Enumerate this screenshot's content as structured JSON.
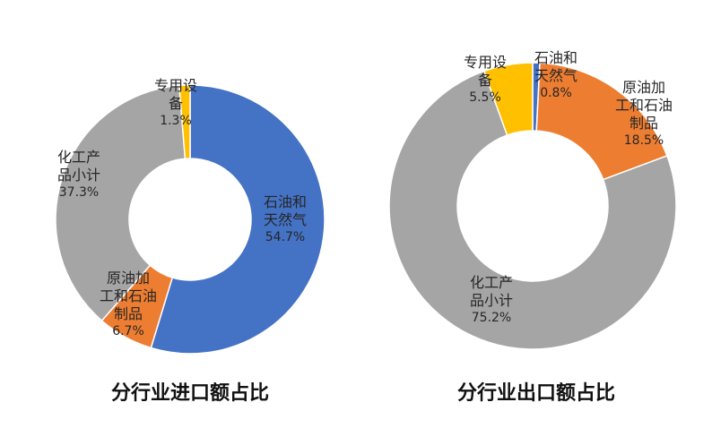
{
  "chart_data": [
    {
      "type": "pie",
      "title": "分行业进口额占比",
      "slices": [
        {
          "name": "石油和天然气",
          "label_lines": [
            "石油和",
            "天然气"
          ],
          "value": 54.7,
          "pct_label": "54.7%",
          "color": "#4472C4"
        },
        {
          "name": "原油加工和石油制品",
          "label_lines": [
            "原油加",
            "工和石油",
            "制品"
          ],
          "value": 6.7,
          "pct_label": "6.7%",
          "color": "#ED7D31"
        },
        {
          "name": "化工产品小计",
          "label_lines": [
            "化工产",
            "品小计"
          ],
          "value": 37.3,
          "pct_label": "37.3%",
          "color": "#A5A5A5"
        },
        {
          "name": "专用设备",
          "label_lines": [
            "专用设",
            "备"
          ],
          "value": 1.3,
          "pct_label": "1.3%",
          "color": "#FFC000"
        }
      ]
    },
    {
      "type": "pie",
      "title": "分行业出口额占比",
      "slices": [
        {
          "name": "石油和天然气",
          "label_lines": [
            "石油和",
            "天然气"
          ],
          "value": 0.8,
          "pct_label": "0.8%",
          "color": "#4472C4"
        },
        {
          "name": "原油加工和石油制品",
          "label_lines": [
            "原油加",
            "工和石油",
            "制品"
          ],
          "value": 18.5,
          "pct_label": "18.5%",
          "color": "#ED7D31"
        },
        {
          "name": "化工产品小计",
          "label_lines": [
            "化工产",
            "品小计"
          ],
          "value": 75.2,
          "pct_label": "75.2%",
          "color": "#A5A5A5"
        },
        {
          "name": "专用设备",
          "label_lines": [
            "专用设",
            "备"
          ],
          "value": 5.5,
          "pct_label": "5.5%",
          "color": "#FFC000"
        }
      ]
    }
  ]
}
